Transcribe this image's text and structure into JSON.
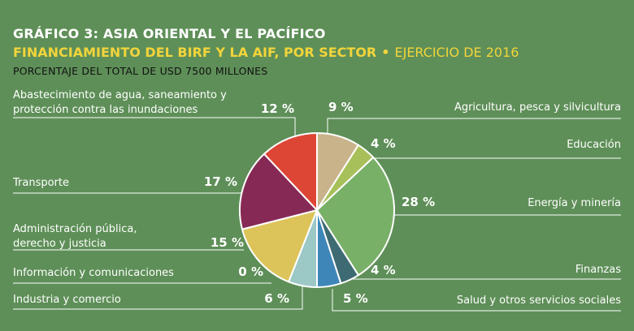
{
  "header": {
    "title": "GRÁFICO 3: ASIA ORIENTAL Y EL PACÍFICO",
    "subtitle": "FINANCIAMIENTO DEL BIRF Y LA AIF, POR SECTOR",
    "separator": "•",
    "fiscal_year": "EJERCICIO DE 2016",
    "unit_note": "PORCENTAJE DEL TOTAL DE USD 7500 MILLONES"
  },
  "chart_data": {
    "type": "pie",
    "title": "Financiamiento del BIRF y la AIF, por sector",
    "total": "USD 7500 millones",
    "slices": [
      {
        "label": "Agricultura, pesca y silvicultura",
        "value": 9,
        "value_label": "9 %",
        "color": "#c8b38a"
      },
      {
        "label": "Educación",
        "value": 4,
        "value_label": "4 %",
        "color": "#a8c05a"
      },
      {
        "label": "Energía y minería",
        "value": 28,
        "value_label": "28 %",
        "color": "#79b068"
      },
      {
        "label": "Finanzas",
        "value": 4,
        "value_label": "4 %",
        "color": "#3e6b73"
      },
      {
        "label": "Salud y otros servicios sociales",
        "value": 5,
        "value_label": "5 %",
        "color": "#3e86b8"
      },
      {
        "label": "Industria y comercio",
        "value": 6,
        "value_label": "6 %",
        "color": "#9cc8c6"
      },
      {
        "label": "Información y comunicaciones",
        "value": 0,
        "value_label": "0 %",
        "color": "#ffffff"
      },
      {
        "label": "Administración pública, derecho y justicia",
        "value": 15,
        "value_label": "15 %",
        "color": "#dcc45a"
      },
      {
        "label": "Transporte",
        "value": 17,
        "value_label": "17 %",
        "color": "#862a55"
      },
      {
        "label": "Abastecimiento de agua, saneamiento y protección contra las inundaciones",
        "value": 12,
        "value_label": "12 %",
        "color": "#dd4535"
      }
    ]
  }
}
